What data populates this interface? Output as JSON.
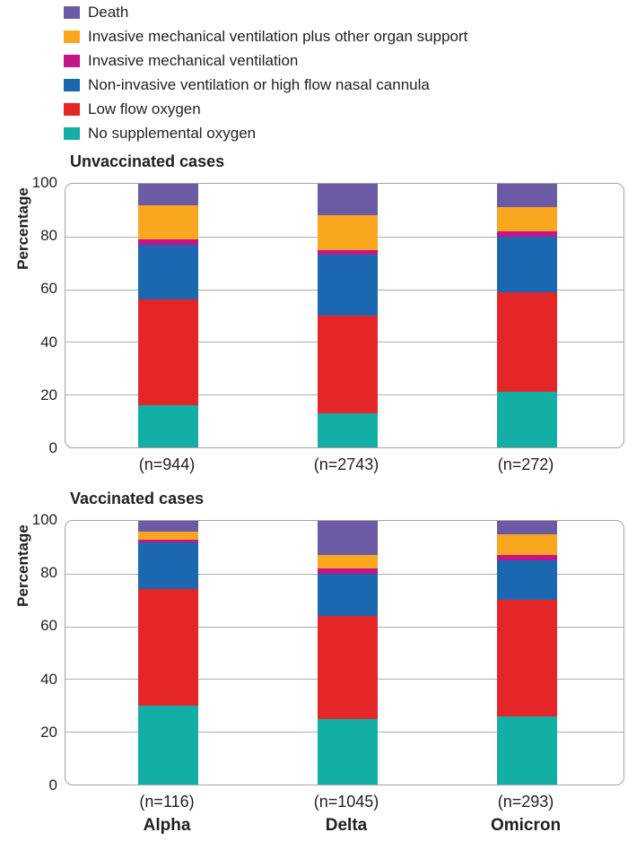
{
  "legend": {
    "items": [
      {
        "label": "Death",
        "color": "#6B5BA5"
      },
      {
        "label": "Invasive mechanical ventilation plus other organ support",
        "color": "#F9A71F"
      },
      {
        "label": "Invasive mechanical ventilation",
        "color": "#C51587"
      },
      {
        "label": "Non-invasive ventilation or high flow nasal cannula",
        "color": "#1C68B0"
      },
      {
        "label": "Low flow oxygen",
        "color": "#E52629"
      },
      {
        "label": "No supplemental oxygen",
        "color": "#13AFA6"
      }
    ]
  },
  "y_axis": {
    "label": "Percentage",
    "ticks": [
      "100",
      "80",
      "60",
      "40",
      "20",
      "0"
    ]
  },
  "x_axis": {
    "variants": [
      "Alpha",
      "Delta",
      "Omicron"
    ]
  },
  "chart_data": [
    {
      "type": "bar",
      "stacked": true,
      "title": "Unvaccinated cases",
      "xlabel": "",
      "ylabel": "Percentage",
      "ylim": [
        0,
        100
      ],
      "grid": true,
      "legend_position": "top-left",
      "categories": [
        "Alpha",
        "Delta",
        "Omicron"
      ],
      "category_counts": [
        "(n=944)",
        "(n=2743)",
        "(n=272)"
      ],
      "series": [
        {
          "name": "No supplemental oxygen",
          "color": "#13AFA6",
          "values": [
            16,
            13,
            21
          ]
        },
        {
          "name": "Low flow oxygen",
          "color": "#E52629",
          "values": [
            40,
            37,
            38
          ]
        },
        {
          "name": "Non-invasive ventilation or high flow nasal cannula",
          "color": "#1C68B0",
          "values": [
            21,
            23,
            21
          ]
        },
        {
          "name": "Invasive mechanical ventilation",
          "color": "#C51587",
          "values": [
            2,
            2,
            2
          ]
        },
        {
          "name": "Invasive mechanical ventilation plus other organ support",
          "color": "#F9A71F",
          "values": [
            13,
            13,
            9
          ]
        },
        {
          "name": "Death",
          "color": "#6B5BA5",
          "values": [
            8,
            12,
            9
          ]
        }
      ]
    },
    {
      "type": "bar",
      "stacked": true,
      "title": "Vaccinated cases",
      "xlabel": "",
      "ylabel": "Percentage",
      "ylim": [
        0,
        100
      ],
      "grid": true,
      "categories": [
        "Alpha",
        "Delta",
        "Omicron"
      ],
      "category_counts": [
        "(n=116)",
        "(n=1045)",
        "(n=293)"
      ],
      "series": [
        {
          "name": "No supplemental oxygen",
          "color": "#13AFA6",
          "values": [
            30,
            25,
            26
          ]
        },
        {
          "name": "Low flow oxygen",
          "color": "#E52629",
          "values": [
            44,
            39,
            44
          ]
        },
        {
          "name": "Non-invasive ventilation or high flow nasal cannula",
          "color": "#1C68B0",
          "values": [
            18,
            16,
            15
          ]
        },
        {
          "name": "Invasive mechanical ventilation",
          "color": "#C51587",
          "values": [
            1,
            2,
            2
          ]
        },
        {
          "name": "Invasive mechanical ventilation plus other organ support",
          "color": "#F9A71F",
          "values": [
            3,
            5,
            8
          ]
        },
        {
          "name": "Death",
          "color": "#6B5BA5",
          "values": [
            4,
            13,
            5
          ]
        }
      ]
    }
  ],
  "styles": {
    "grid_color": "#ADADAD",
    "border_color": "#A2A2A2",
    "text_color": "#231F20",
    "background": "#FFFFFF"
  }
}
